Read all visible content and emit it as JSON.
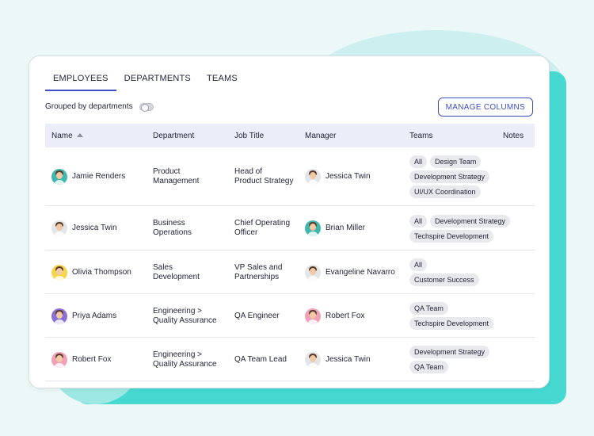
{
  "tabs": [
    {
      "label": "EMPLOYEES",
      "active": true
    },
    {
      "label": "DEPARTMENTS",
      "active": false
    },
    {
      "label": "TEAMS",
      "active": false
    }
  ],
  "toggle": {
    "label": "Grouped by departments",
    "on": false
  },
  "manage_columns_label": "MANAGE COLUMNS",
  "columns": {
    "name": "Name",
    "department": "Department",
    "job_title": "Job Title",
    "manager": "Manager",
    "teams": "Teams",
    "notes": "Notes"
  },
  "colors": {
    "accent": "#3d4fc1",
    "header_bg": "#ebeef9",
    "chip_bg": "#e8e9ec",
    "teal": "#45d9d2"
  },
  "rows": [
    {
      "name": "Jamie Renders",
      "avatar_bg": "#3fb7ae",
      "department_line1": "Product",
      "department_line2": "Management",
      "job_line1": "Head of",
      "job_line2": "Product Strategy",
      "manager": "Jessica Twin",
      "manager_avatar_bg": "#e3e5e8",
      "teams": [
        [
          "All",
          "Design Team"
        ],
        [
          "Development Strategy"
        ],
        [
          "UI/UX Coordination"
        ]
      ]
    },
    {
      "name": "Jessica Twin",
      "avatar_bg": "#e3e5e8",
      "department_line1": "Business",
      "department_line2": "Operations",
      "job_line1": "Chief Operating",
      "job_line2": "Officer",
      "manager": "Brian Miller",
      "manager_avatar_bg": "#3fb7ae",
      "teams": [
        [
          "All",
          "Development Strategy"
        ],
        [
          "Techspire Development"
        ]
      ]
    },
    {
      "name": "Olivia Thompson",
      "avatar_bg": "#f7d54a",
      "department_line1": "Sales",
      "department_line2": "Development",
      "job_line1": "VP Sales and",
      "job_line2": "Partnerships",
      "manager": "Evangeline Navarro",
      "manager_avatar_bg": "#e3e5e8",
      "teams": [
        [
          "All"
        ],
        [
          "Customer Success"
        ]
      ]
    },
    {
      "name": "Priya Adams",
      "avatar_bg": "#8a6fd6",
      "department_line1": "Engineering >",
      "department_line2": "Quality Assurance",
      "job_line1": "QA Engineer",
      "job_line2": "",
      "manager": "Robert Fox",
      "manager_avatar_bg": "#f2a0b8",
      "teams": [
        [
          "QA Team"
        ],
        [
          "Techspire Development"
        ]
      ]
    },
    {
      "name": "Robert Fox",
      "avatar_bg": "#f2a0b8",
      "department_line1": "Engineering >",
      "department_line2": "Quality Assurance",
      "job_line1": "QA Team Lead",
      "job_line2": "",
      "manager": "Jessica Twin",
      "manager_avatar_bg": "#e3e5e8",
      "teams": [
        [
          "Development Strategy"
        ],
        [
          "QA Team"
        ]
      ]
    }
  ]
}
